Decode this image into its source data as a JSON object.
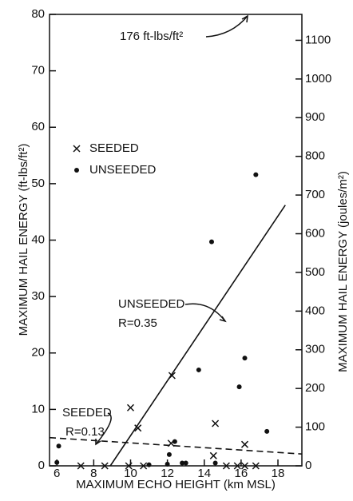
{
  "chart_data": {
    "type": "scatter",
    "xlabel": "MAXIMUM ECHO HEIGHT (km MSL)",
    "ylabel": "MAXIMUM HAIL ENERGY (ft-lbs/ft²)",
    "y2label": "MAXIMUM HAIL ENERGY (joules/m²)",
    "xlim": [
      5.6,
      19.3
    ],
    "xticks": [
      6,
      8,
      10,
      12,
      14,
      16,
      18
    ],
    "ylim": [
      0,
      80
    ],
    "yticks": [
      0,
      10,
      20,
      30,
      40,
      50,
      60,
      70,
      80
    ],
    "y2lim": [
      0,
      1167
    ],
    "y2ticks": [
      0,
      100,
      200,
      300,
      400,
      500,
      600,
      700,
      800,
      900,
      1000,
      1100
    ],
    "color": "#111111",
    "series": [
      {
        "name": "SEEDED",
        "marker": "x",
        "x": [
          7.3,
          8.6,
          9.9,
          10.7,
          15.2,
          15.8,
          16.2,
          16.8,
          10.0,
          10.4,
          12.25,
          12.2,
          14.6,
          14.5,
          16.2
        ],
        "values": [
          0,
          0,
          0,
          0,
          0,
          0,
          0,
          0,
          10.3,
          6.7,
          16,
          4,
          7.5,
          1.8,
          3.8
        ]
      },
      {
        "name": "UNSEEDED",
        "marker": "dot",
        "x": [
          6.1,
          6.0,
          11.0,
          12.0,
          12.1,
          12.4,
          12.8,
          13.0,
          13.7,
          14.4,
          14.6,
          15.9,
          16.2,
          16.8,
          17.4
        ],
        "values": [
          3.5,
          0.6,
          0.2,
          0.3,
          2,
          4.3,
          0.5,
          0.5,
          17,
          39.7,
          0.5,
          14,
          19.1,
          51.6,
          6.1
        ]
      }
    ],
    "fit_lines": [
      {
        "style": "solid",
        "x": [
          8.9,
          18.4
        ],
        "values": [
          0,
          46.2
        ]
      },
      {
        "style": "dashed",
        "x": [
          5.6,
          19.3
        ],
        "values": [
          5,
          2.1
        ]
      }
    ],
    "annotations": [
      "UNSEEDED",
      "R=0.35",
      "SEEDED",
      "R=0.13",
      "176 ft-lbs/ft²"
    ]
  }
}
